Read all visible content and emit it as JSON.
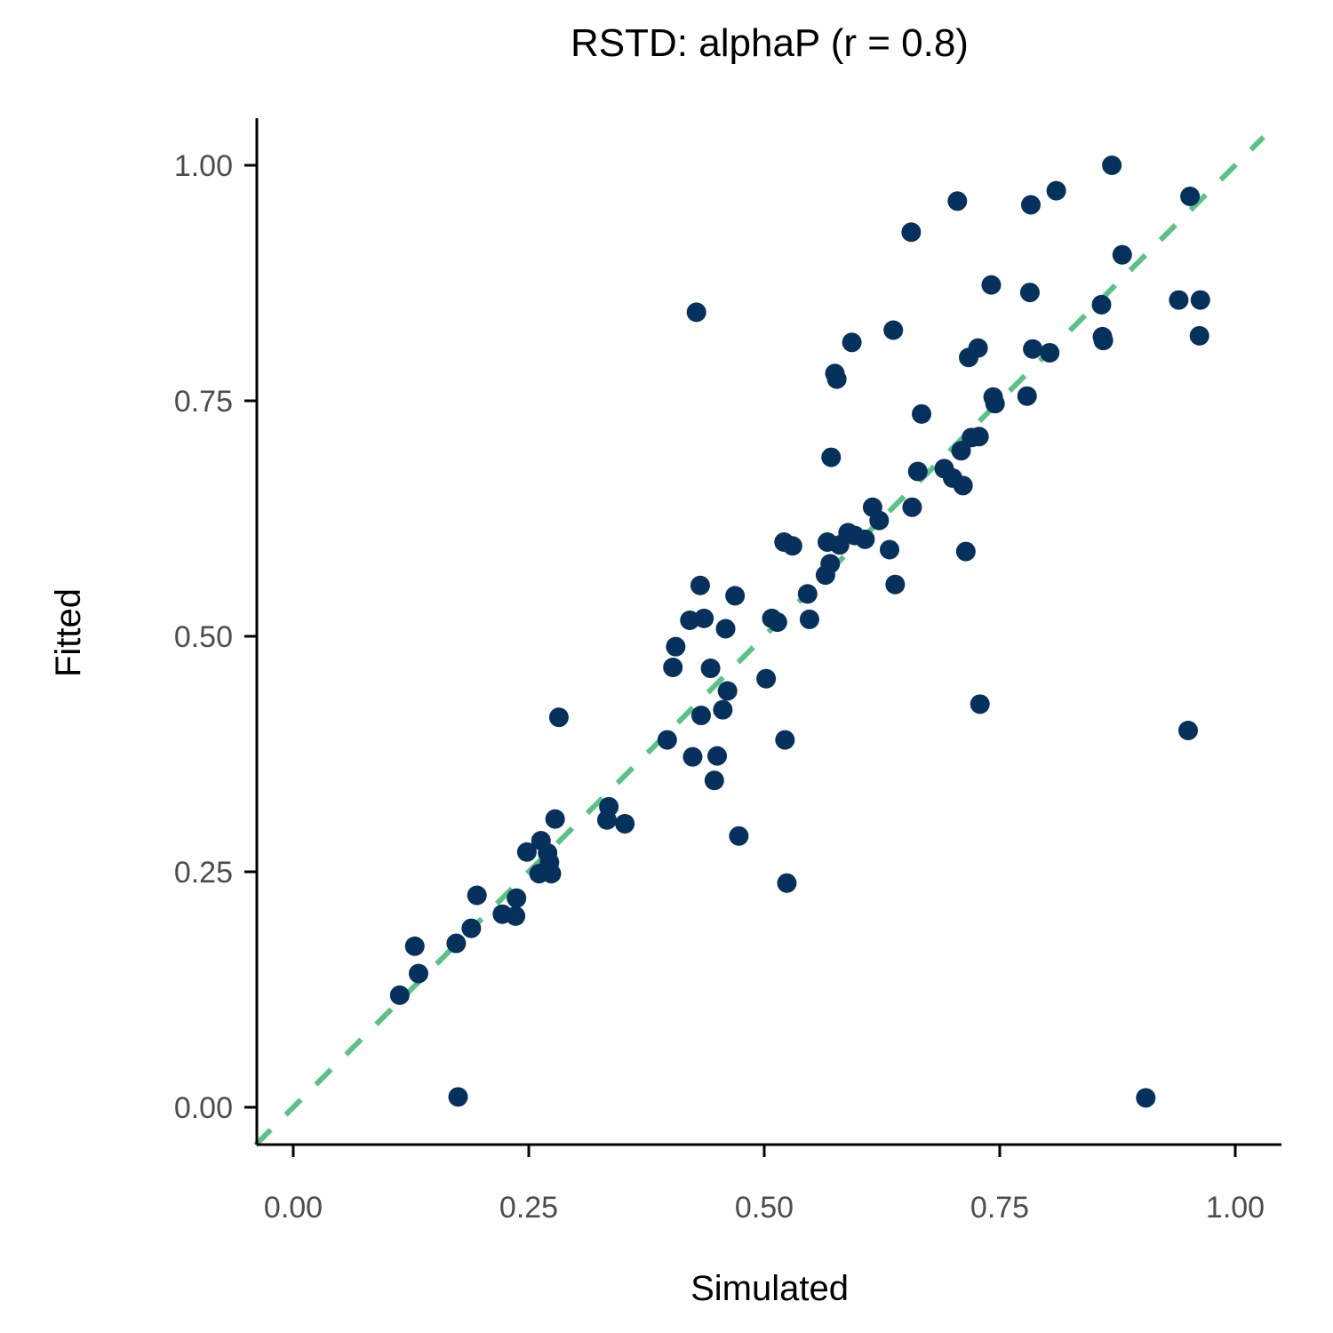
{
  "chart_data": {
    "type": "scatter",
    "title": "RSTD: alphaP (r = 0.8)",
    "xlabel": "Simulated",
    "ylabel": "Fitted",
    "xlim": [
      -0.04,
      1.05
    ],
    "ylim": [
      -0.04,
      1.05
    ],
    "x_ticks": [
      0,
      0.25,
      0.5,
      0.75,
      1
    ],
    "y_ticks": [
      0,
      0.25,
      0.5,
      0.75,
      1
    ],
    "x_tick_labels": [
      "0.00",
      "0.25",
      "0.50",
      "0.75",
      "1.00"
    ],
    "y_tick_labels": [
      "0.00",
      "0.25",
      "0.50",
      "0.75",
      "1.00"
    ],
    "grid": false,
    "legend": "none",
    "point_color": "#06315c",
    "reference_line": {
      "slope": 1,
      "intercept": 0,
      "style": "dashed",
      "color": "#5cc187"
    },
    "points": [
      [
        0.113,
        0.119
      ],
      [
        0.129,
        0.171
      ],
      [
        0.133,
        0.142
      ],
      [
        0.173,
        0.174
      ],
      [
        0.175,
        0.011
      ],
      [
        0.189,
        0.19
      ],
      [
        0.195,
        0.225
      ],
      [
        0.222,
        0.205
      ],
      [
        0.236,
        0.203
      ],
      [
        0.237,
        0.222
      ],
      [
        0.248,
        0.271
      ],
      [
        0.261,
        0.248
      ],
      [
        0.263,
        0.283
      ],
      [
        0.27,
        0.27
      ],
      [
        0.272,
        0.26
      ],
      [
        0.274,
        0.248
      ],
      [
        0.278,
        0.306
      ],
      [
        0.282,
        0.414
      ],
      [
        0.333,
        0.305
      ],
      [
        0.335,
        0.319
      ],
      [
        0.352,
        0.301
      ],
      [
        0.397,
        0.39
      ],
      [
        0.403,
        0.467
      ],
      [
        0.406,
        0.489
      ],
      [
        0.421,
        0.517
      ],
      [
        0.424,
        0.372
      ],
      [
        0.428,
        0.844
      ],
      [
        0.432,
        0.554
      ],
      [
        0.433,
        0.416
      ],
      [
        0.436,
        0.519
      ],
      [
        0.443,
        0.466
      ],
      [
        0.447,
        0.347
      ],
      [
        0.45,
        0.373
      ],
      [
        0.456,
        0.422
      ],
      [
        0.459,
        0.508
      ],
      [
        0.461,
        0.442
      ],
      [
        0.469,
        0.543
      ],
      [
        0.473,
        0.288
      ],
      [
        0.502,
        0.455
      ],
      [
        0.508,
        0.519
      ],
      [
        0.514,
        0.515
      ],
      [
        0.521,
        0.6
      ],
      [
        0.522,
        0.39
      ],
      [
        0.524,
        0.238
      ],
      [
        0.53,
        0.596
      ],
      [
        0.546,
        0.545
      ],
      [
        0.548,
        0.518
      ],
      [
        0.565,
        0.565
      ],
      [
        0.567,
        0.6
      ],
      [
        0.57,
        0.577
      ],
      [
        0.571,
        0.69
      ],
      [
        0.575,
        0.779
      ],
      [
        0.577,
        0.773
      ],
      [
        0.58,
        0.597
      ],
      [
        0.589,
        0.61
      ],
      [
        0.593,
        0.812
      ],
      [
        0.596,
        0.607
      ],
      [
        0.607,
        0.603
      ],
      [
        0.615,
        0.637
      ],
      [
        0.622,
        0.623
      ],
      [
        0.633,
        0.592
      ],
      [
        0.637,
        0.825
      ],
      [
        0.639,
        0.555
      ],
      [
        0.656,
        0.929
      ],
      [
        0.657,
        0.637
      ],
      [
        0.663,
        0.675
      ],
      [
        0.667,
        0.736
      ],
      [
        0.691,
        0.678
      ],
      [
        0.7,
        0.668
      ],
      [
        0.705,
        0.962
      ],
      [
        0.709,
        0.697
      ],
      [
        0.711,
        0.66
      ],
      [
        0.714,
        0.59
      ],
      [
        0.717,
        0.796
      ],
      [
        0.72,
        0.711
      ],
      [
        0.727,
        0.806
      ],
      [
        0.728,
        0.712
      ],
      [
        0.729,
        0.428
      ],
      [
        0.741,
        0.873
      ],
      [
        0.743,
        0.754
      ],
      [
        0.745,
        0.747
      ],
      [
        0.779,
        0.755
      ],
      [
        0.782,
        0.865
      ],
      [
        0.783,
        0.958
      ],
      [
        0.785,
        0.805
      ],
      [
        0.803,
        0.801
      ],
      [
        0.81,
        0.973
      ],
      [
        0.858,
        0.852
      ],
      [
        0.859,
        0.818
      ],
      [
        0.86,
        0.814
      ],
      [
        0.869,
        1.0
      ],
      [
        0.88,
        0.905
      ],
      [
        0.905,
        0.01
      ],
      [
        0.94,
        0.857
      ],
      [
        0.95,
        0.4
      ],
      [
        0.952,
        0.967
      ],
      [
        0.962,
        0.819
      ],
      [
        0.963,
        0.857
      ]
    ]
  }
}
